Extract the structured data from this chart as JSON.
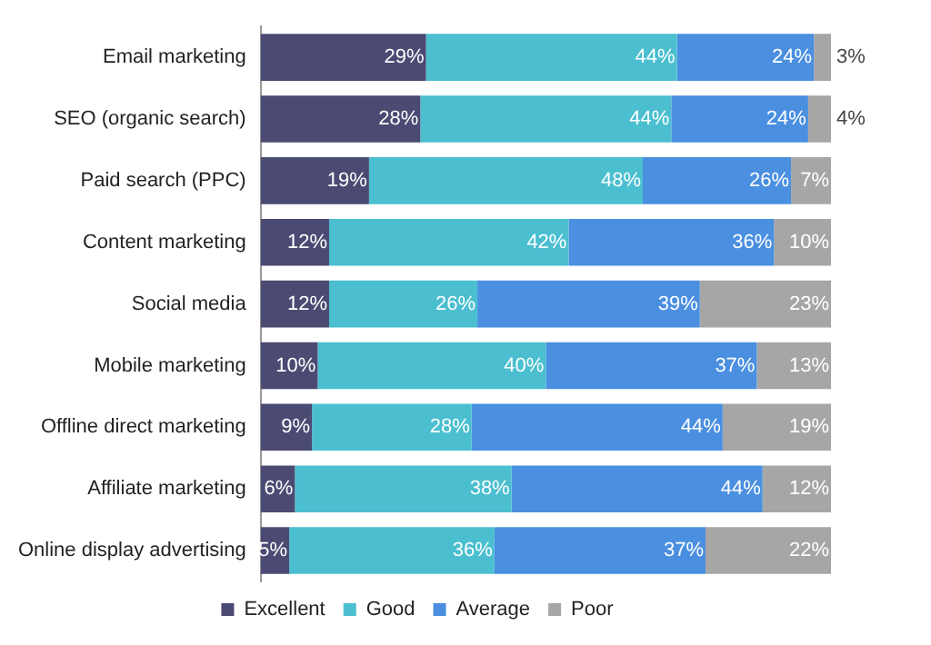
{
  "chart_data": {
    "type": "bar",
    "orientation": "horizontal",
    "stacked": true,
    "legend": "bottom",
    "categories": [
      "Email marketing",
      "SEO (organic search)",
      "Paid search (PPC)",
      "Content marketing",
      "Social media",
      "Mobile marketing",
      "Offline direct marketing",
      "Affiliate marketing",
      "Online display advertising"
    ],
    "series": [
      {
        "name": "Excellent",
        "color": "#4a4a73",
        "values": [
          29,
          28,
          19,
          12,
          12,
          10,
          9,
          6,
          5
        ],
        "value_labels": [
          "29%",
          "28%",
          "19%",
          "12%",
          "12%",
          "10%",
          "9%",
          "6%",
          "5%"
        ]
      },
      {
        "name": "Good",
        "color": "#4bbfd0",
        "values": [
          44,
          44,
          48,
          42,
          26,
          40,
          28,
          38,
          36
        ],
        "value_labels": [
          "44%",
          "44%",
          "48%",
          "42%",
          "26%",
          "40%",
          "28%",
          "38%",
          "36%"
        ]
      },
      {
        "name": "Average",
        "color": "#4a8fe0",
        "values": [
          24,
          24,
          26,
          36,
          39,
          37,
          44,
          44,
          37
        ],
        "value_labels": [
          "24%",
          "24%",
          "26%",
          "36%",
          "39%",
          "37%",
          "44%",
          "44%",
          "37%"
        ]
      },
      {
        "name": "Poor",
        "color": "#a6a6a6",
        "values": [
          3,
          4,
          7,
          10,
          23,
          13,
          19,
          12,
          22
        ],
        "value_labels": [
          "3%",
          "4%",
          "7%",
          "10%",
          "23%",
          "13%",
          "19%",
          "12%",
          "22%"
        ]
      }
    ]
  }
}
